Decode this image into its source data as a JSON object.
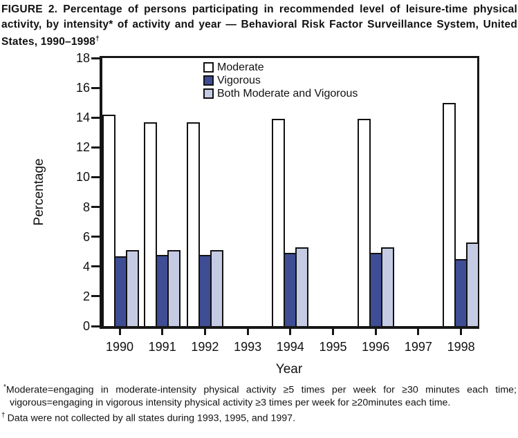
{
  "title": {
    "text": "FIGURE 2. Percentage of persons participating in recommended level of leisure-time physical activity, by intensity* of activity and year — Behavioral Risk Factor Surveillance System, United States, 1990–1998",
    "dagger": "†"
  },
  "chart_data": {
    "type": "bar",
    "title": "",
    "xlabel": "Year",
    "ylabel": "Percentage",
    "ylim": [
      0,
      18
    ],
    "ytick_step": 2,
    "grid": false,
    "legend_position": "top-center-inside",
    "categories": [
      "1990",
      "1991",
      "1992",
      "1993",
      "1994",
      "1995",
      "1996",
      "1997",
      "1998"
    ],
    "series": [
      {
        "name": "Moderate",
        "color": "#ffffff",
        "values": [
          14.2,
          13.7,
          13.7,
          null,
          13.9,
          null,
          13.9,
          null,
          15.0
        ]
      },
      {
        "name": "Vigorous",
        "color": "#3e4d94",
        "values": [
          4.7,
          4.8,
          4.8,
          null,
          4.9,
          null,
          4.9,
          null,
          4.5
        ]
      },
      {
        "name": "Both Moderate and Vigorous",
        "color": "#c5cbe3",
        "values": [
          5.1,
          5.1,
          5.1,
          null,
          5.3,
          null,
          5.3,
          null,
          5.6
        ]
      }
    ]
  },
  "footnotes": [
    {
      "marker": "*",
      "text": "Moderate=engaging in moderate-intensity physical activity ≥5 times per week for ≥30 minutes each time; vigorous=engaging in vigorous intensity physical activity ≥3 times per week for ≥20minutes each time."
    },
    {
      "marker": "†",
      "text": "Data were not collected by all states during 1993, 1995, and 1997."
    }
  ],
  "colors": {
    "axis": "#161616",
    "bar_border": "#111111",
    "text": "#111111"
  }
}
